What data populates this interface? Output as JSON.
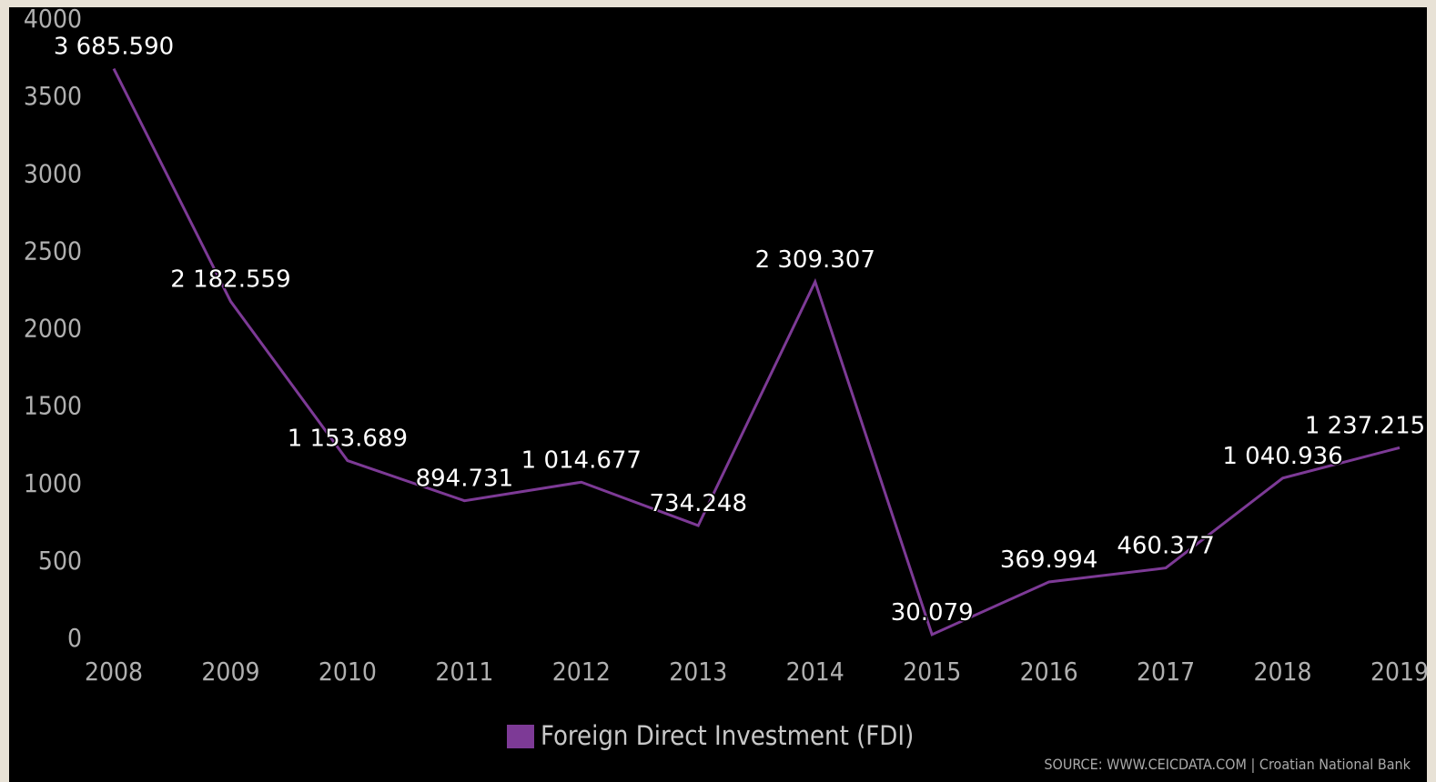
{
  "chart_data": {
    "type": "line",
    "categories": [
      "2008",
      "2009",
      "2010",
      "2011",
      "2012",
      "2013",
      "2014",
      "2015",
      "2016",
      "2017",
      "2018",
      "2019"
    ],
    "series": [
      {
        "name": "Foreign Direct Investment (FDI)",
        "color": "#7d3a96",
        "values": [
          3685.59,
          2182.559,
          1153.689,
          894.731,
          1014.677,
          734.248,
          2309.307,
          30.079,
          369.994,
          460.377,
          1040.936,
          1237.215
        ],
        "value_labels": [
          "3 685.590",
          "2 182.559",
          "1 153.689",
          "894.731",
          "1 014.677",
          "734.248",
          "2 309.307",
          "30.079",
          "369.994",
          "460.377",
          "1 040.936",
          "1 237.215"
        ]
      }
    ],
    "ylim": [
      0,
      4000
    ],
    "yticks": [
      0,
      500,
      1000,
      1500,
      2000,
      2500,
      3000,
      3500,
      4000
    ],
    "source": "SOURCE: WWW.CEICDATA.COM | Croatian National Bank"
  }
}
